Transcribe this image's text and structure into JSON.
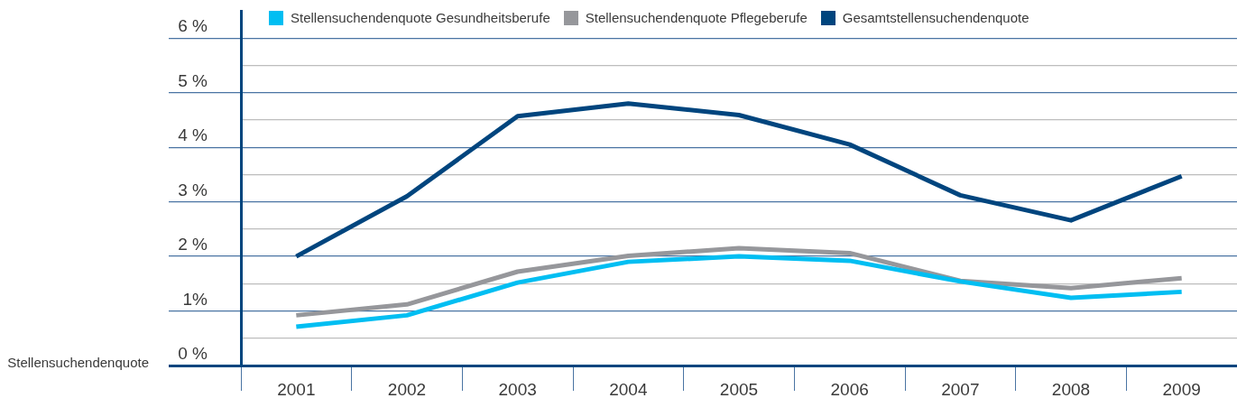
{
  "chart_data": {
    "type": "line",
    "ylabel": "Stellensuchendenquote",
    "categories": [
      "2001",
      "2002",
      "2003",
      "2004",
      "2005",
      "2006",
      "2007",
      "2008",
      "2009"
    ],
    "series": [
      {
        "name": "Stellensuchendenquote Gesundheitsberufe",
        "color": "#00bef2",
        "values": [
          0.71,
          0.92,
          1.52,
          1.9,
          2.0,
          1.92,
          1.54,
          1.24,
          1.35
        ]
      },
      {
        "name": "Stellensuchendenquote Pflegeberufe",
        "color": "#96979b",
        "values": [
          0.92,
          1.12,
          1.72,
          2.01,
          2.15,
          2.06,
          1.55,
          1.42,
          1.6
        ]
      },
      {
        "name": "Gesamtstellensuchendenquote",
        "color": "#00457e",
        "values": [
          2.0,
          3.1,
          4.57,
          4.8,
          4.59,
          4.05,
          3.12,
          2.66,
          3.47
        ]
      }
    ],
    "ylim": [
      0,
      6.5
    ],
    "yticks": [
      {
        "value": 0,
        "label": "0 %"
      },
      {
        "value": 0.5,
        "label": null
      },
      {
        "value": 1,
        "label": "1%"
      },
      {
        "value": 1.5,
        "label": null
      },
      {
        "value": 2,
        "label": "2 %"
      },
      {
        "value": 2.5,
        "label": null
      },
      {
        "value": 3,
        "label": "3 %"
      },
      {
        "value": 3.5,
        "label": null
      },
      {
        "value": 4,
        "label": "4 %"
      },
      {
        "value": 4.5,
        "label": null
      },
      {
        "value": 5,
        "label": "5 %"
      },
      {
        "value": 5.5,
        "label": null
      },
      {
        "value": 6,
        "label": "6 %"
      }
    ],
    "grid": "y",
    "legend": "top left",
    "marker": "none"
  }
}
